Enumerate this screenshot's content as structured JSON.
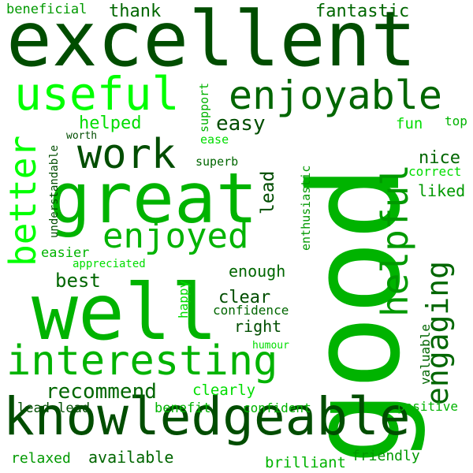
{
  "colors": {
    "darkest": "#004d00",
    "dark": "#006600",
    "mid": "#009900",
    "bright": "#00b300",
    "light": "#00dd00",
    "lime": "#00ff00"
  },
  "words": [
    "excellent",
    "good",
    "great",
    "well",
    "knowledgeable",
    "interesting",
    "enjoyable",
    "useful",
    "work",
    "enjoyed",
    "helpful",
    "engaging",
    "better",
    "recommend",
    "easy",
    "helped",
    "thank",
    "fantastic",
    "beneficial",
    "support",
    "ease",
    "worth",
    "understandable",
    "superb",
    "lead",
    "enthusiastic",
    "nice",
    "correct",
    "liked",
    "fun",
    "top",
    "easier",
    "appreciated",
    "best",
    "enough",
    "clear",
    "confidence",
    "right",
    "happy",
    "humour",
    "valuable",
    "clearly",
    "lead lead",
    "benefit",
    "confident",
    "positive",
    "relaxed",
    "available",
    "brilliant",
    "friendly"
  ]
}
